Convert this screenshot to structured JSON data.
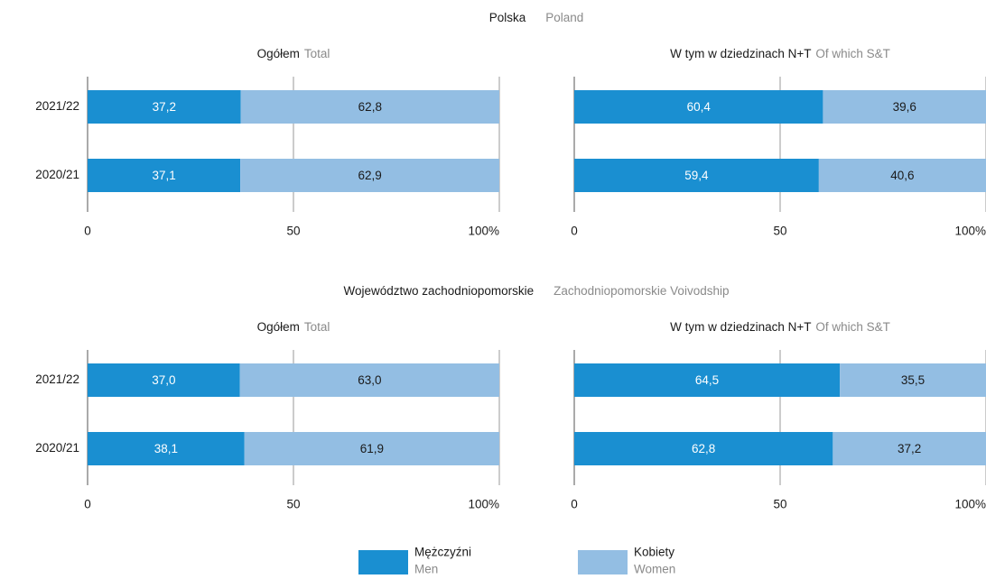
{
  "sections": [
    {
      "title": "Polska",
      "subtitle": "Poland"
    },
    {
      "title": "Województwo zachodniopomorskie",
      "subtitle": "Zachodniopomorskie Voivodship"
    }
  ],
  "legend": [
    {
      "name": "Mężczyźni",
      "name_en": "Men",
      "color": "#1a8fd1"
    },
    {
      "name": "Kobiety",
      "name_en": "Women",
      "color": "#93bee3"
    }
  ],
  "chart_data": [
    {
      "type": "stacked-barh",
      "title": "Ogółem",
      "subtitle": "Total",
      "categories": [
        "2021/22",
        "2020/21"
      ],
      "series": [
        {
          "values": [
            37.2,
            37.1
          ],
          "value_labels": [
            "37,2",
            "37,1"
          ]
        },
        {
          "values": [
            62.8,
            62.9
          ],
          "value_labels": [
            "62,8",
            "62,9"
          ]
        }
      ],
      "xlim": [
        0,
        100
      ],
      "xticks": [
        0,
        50,
        {
          "value": 100,
          "label": "100%"
        }
      ]
    },
    {
      "type": "stacked-barh",
      "title": "W tym w dziedzinach N+T",
      "subtitle": "Of which S&T",
      "categories": [
        "2021/22",
        "2020/21"
      ],
      "series": [
        {
          "values": [
            60.4,
            59.4
          ],
          "value_labels": [
            "60,4",
            "59,4"
          ]
        },
        {
          "values": [
            39.6,
            40.6
          ],
          "value_labels": [
            "39,6",
            "40,6"
          ]
        }
      ],
      "xlim": [
        0,
        100
      ],
      "xticks": [
        0,
        50,
        {
          "value": 100,
          "label": "100%"
        }
      ]
    },
    {
      "type": "stacked-barh",
      "title": "Ogółem",
      "subtitle": "Total",
      "categories": [
        "2021/22",
        "2020/21"
      ],
      "series": [
        {
          "values": [
            37.0,
            38.1
          ],
          "value_labels": [
            "37,0",
            "38,1"
          ]
        },
        {
          "values": [
            63.0,
            61.9
          ],
          "value_labels": [
            "63,0",
            "61,9"
          ]
        }
      ],
      "xlim": [
        0,
        100
      ],
      "xticks": [
        0,
        50,
        {
          "value": 100,
          "label": "100%"
        }
      ]
    },
    {
      "type": "stacked-barh",
      "title": "W tym w dziedzinach N+T",
      "subtitle": "Of which S&T",
      "categories": [
        "2021/22",
        "2020/21"
      ],
      "series": [
        {
          "values": [
            64.5,
            62.8
          ],
          "value_labels": [
            "64,5",
            "62,8"
          ]
        },
        {
          "values": [
            35.5,
            37.2
          ],
          "value_labels": [
            "35,5",
            "37,2"
          ]
        }
      ],
      "xlim": [
        0,
        100
      ],
      "xticks": [
        0,
        50,
        {
          "value": 100,
          "label": "100%"
        }
      ]
    }
  ]
}
